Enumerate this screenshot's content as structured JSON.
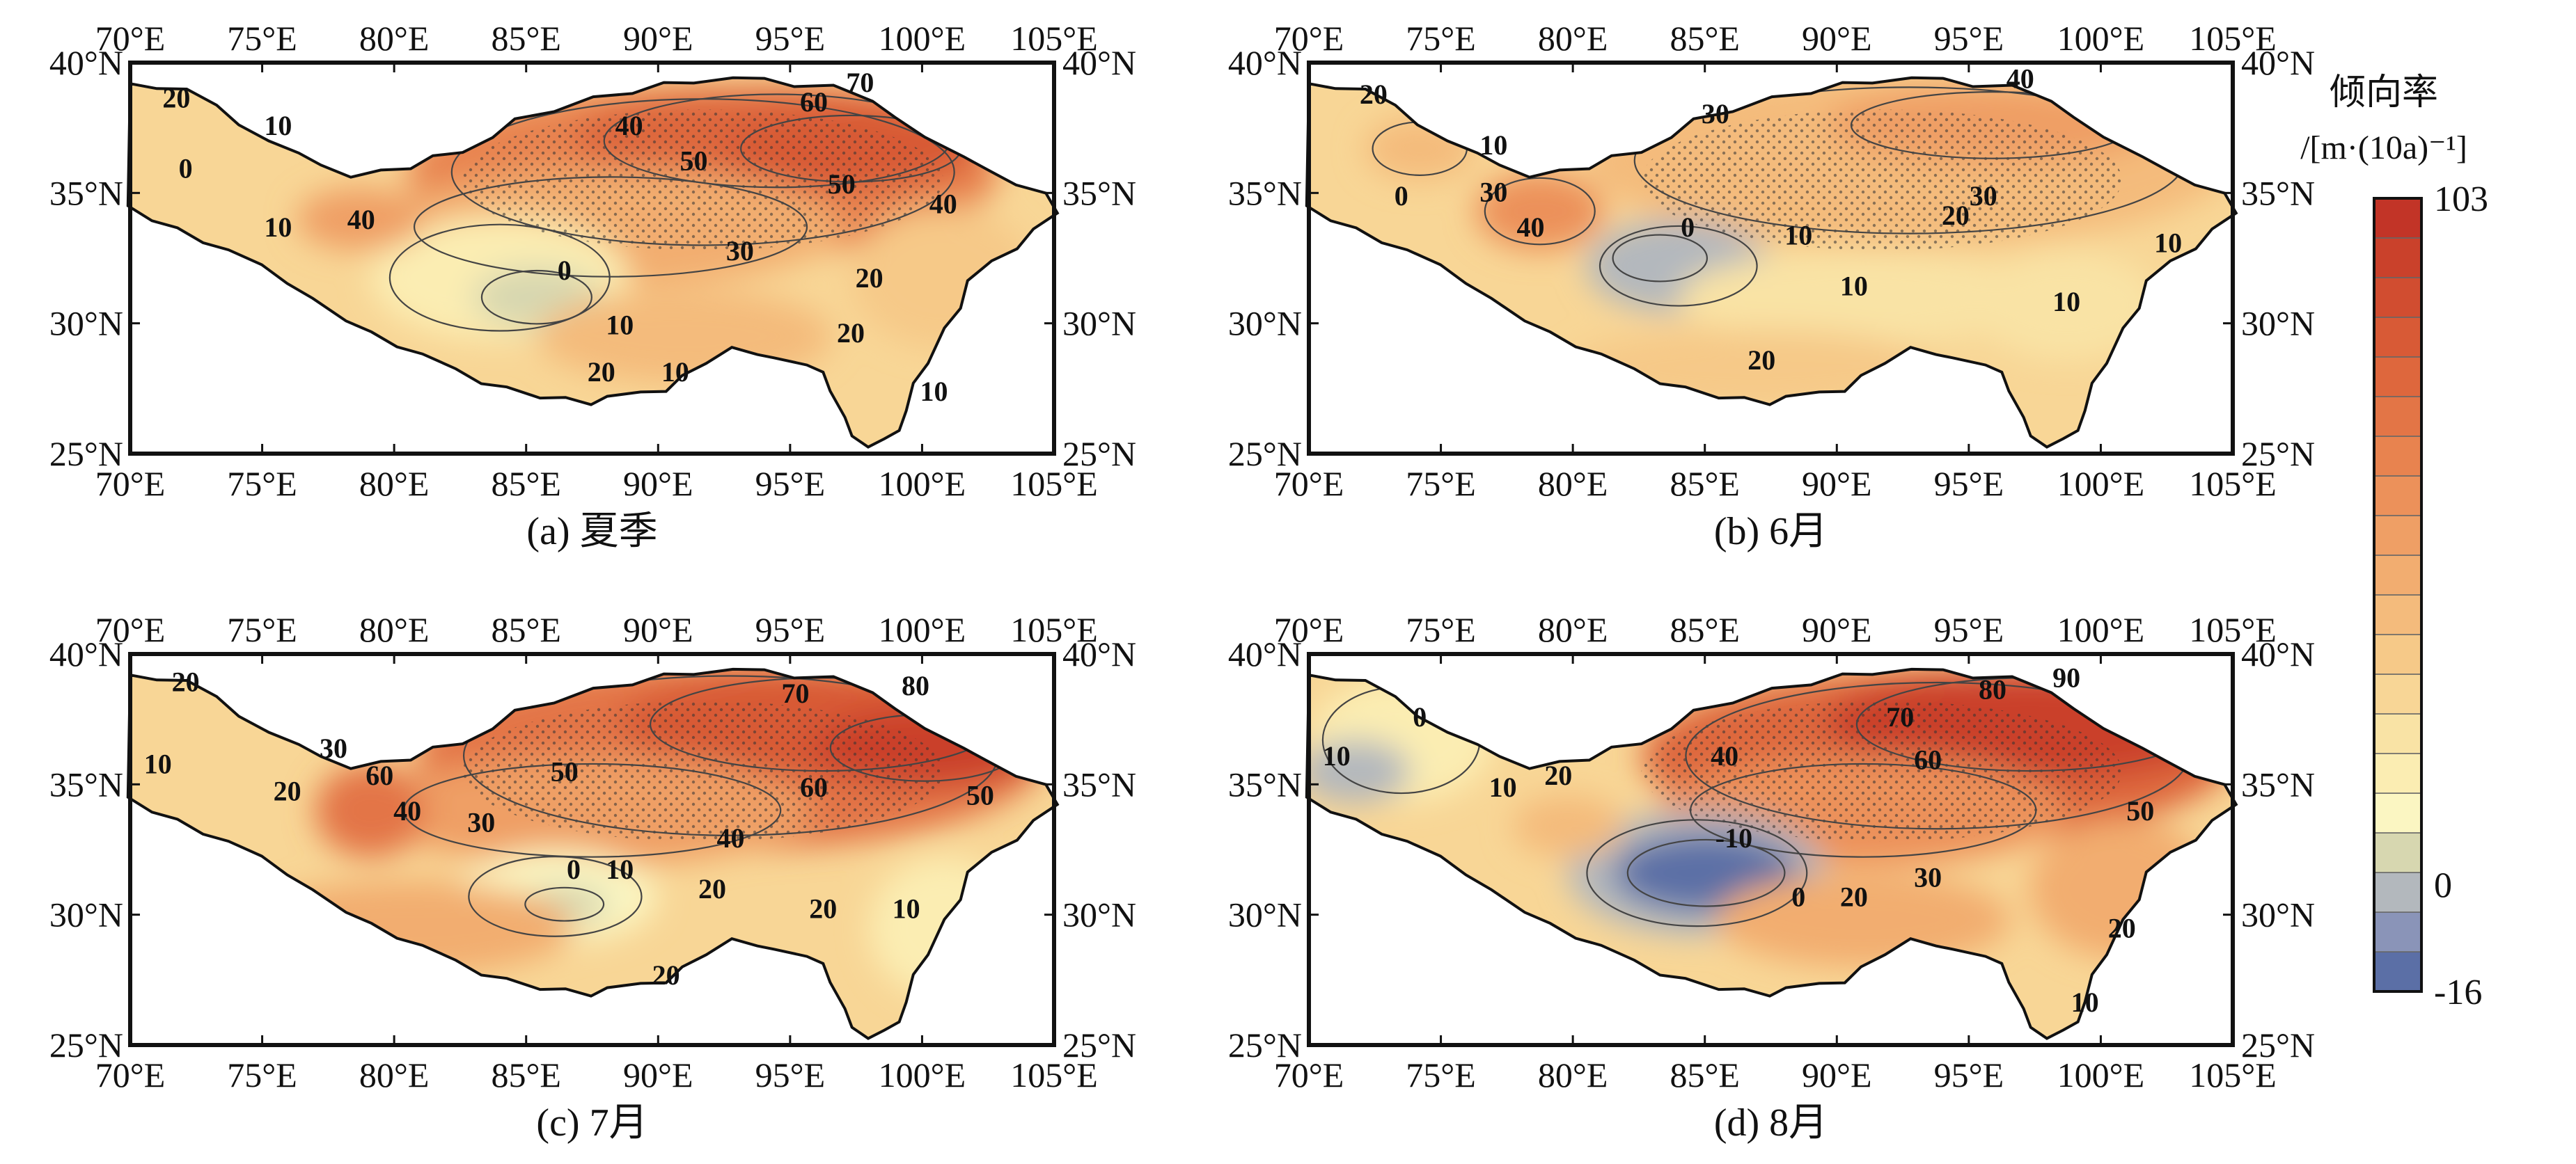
{
  "colorbar": {
    "title": "倾向率",
    "unit": "/[m·(10a)⁻¹]",
    "max_label": "103",
    "zero_label": "0",
    "min_label": "-16",
    "min": -16,
    "max": 103,
    "colors_low_to_high": [
      "#5b6fa6",
      "#8a94b8",
      "#b3b8bd",
      "#d7d7b0",
      "#fbf6c2",
      "#fbedb2",
      "#f9e3a5",
      "#f8d696",
      "#f6c988",
      "#f4bb7c",
      "#f2ad70",
      "#ef9f65",
      "#ec915a",
      "#e8834f",
      "#e37546",
      "#de673d",
      "#d85a36",
      "#d14d30",
      "#ca412b",
      "#c23427"
    ]
  },
  "axes": {
    "lon_ticks": [
      "70°E",
      "75°E",
      "80°E",
      "85°E",
      "90°E",
      "95°E",
      "100°E",
      "105°E"
    ],
    "lat_ticks": [
      "40°N",
      "35°N",
      "30°N",
      "25°N"
    ],
    "lon_range": [
      70,
      105
    ],
    "lat_range": [
      25,
      40
    ]
  },
  "panels": [
    {
      "caption": "(a) 夏季",
      "contour_labels": [
        "20",
        "10",
        "0",
        "10",
        "40",
        "0",
        "10",
        "20",
        "10",
        "20",
        "10",
        "30",
        "20",
        "40",
        "50",
        "50",
        "60",
        "70",
        "40"
      ]
    },
    {
      "caption": "(b) 6月",
      "contour_labels": [
        "20",
        "10",
        "0",
        "30",
        "40",
        "0",
        "10",
        "10",
        "20",
        "30",
        "20",
        "10",
        "10",
        "30",
        "40"
      ]
    },
    {
      "caption": "(c) 7月",
      "contour_labels": [
        "20",
        "10",
        "20",
        "30",
        "60",
        "40",
        "30",
        "50",
        "0",
        "10",
        "20",
        "20",
        "20",
        "10",
        "40",
        "60",
        "70",
        "80",
        "50"
      ]
    },
    {
      "caption": "(d) 8月",
      "contour_labels": [
        "10",
        "0",
        "10",
        "20",
        "-10",
        "0",
        "20",
        "30",
        "20",
        "10",
        "40",
        "60",
        "70",
        "80",
        "90",
        "50"
      ]
    }
  ]
}
